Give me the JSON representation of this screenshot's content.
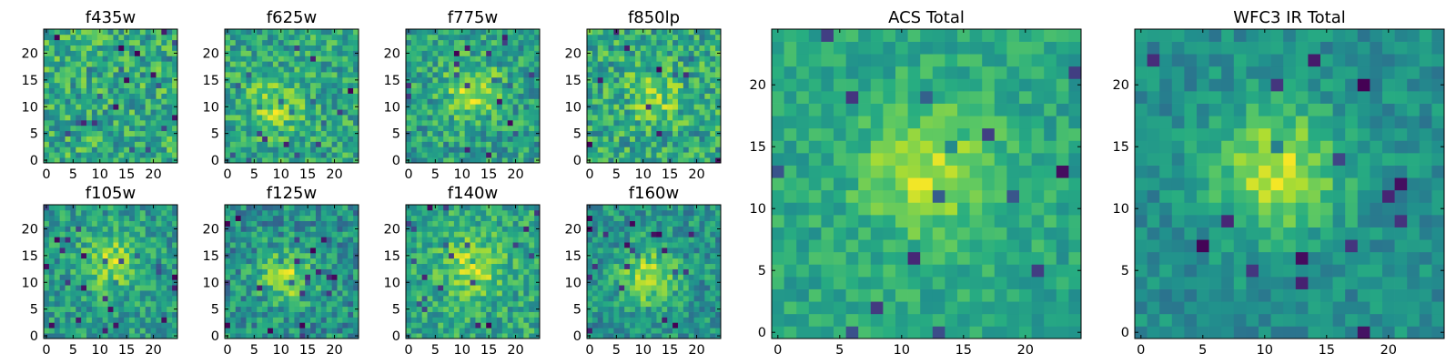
{
  "chart_data": [
    {
      "type": "heatmap",
      "title": "f435w",
      "grid_size": 25,
      "xticks": [
        0,
        5,
        10,
        15,
        20
      ],
      "yticks": [
        0,
        5,
        10,
        15,
        20
      ],
      "xlim": [
        0,
        24
      ],
      "ylim": [
        0,
        24
      ],
      "colormap": "viridis",
      "center": [
        11,
        12
      ],
      "blob_strength": 0.0,
      "noise_level": 0.22,
      "base_level": 0.62,
      "seed": 11
    },
    {
      "type": "heatmap",
      "title": "f625w",
      "grid_size": 25,
      "xticks": [
        0,
        5,
        10,
        15,
        20
      ],
      "yticks": [
        0,
        5,
        10,
        15,
        20
      ],
      "xlim": [
        0,
        24
      ],
      "ylim": [
        0,
        24
      ],
      "colormap": "viridis",
      "center": [
        9,
        10
      ],
      "blob_strength": 0.22,
      "noise_level": 0.2,
      "base_level": 0.6,
      "seed": 23
    },
    {
      "type": "heatmap",
      "title": "f775w",
      "grid_size": 25,
      "xticks": [
        0,
        5,
        10,
        15,
        20
      ],
      "yticks": [
        0,
        5,
        10,
        15,
        20
      ],
      "xlim": [
        0,
        24
      ],
      "ylim": [
        0,
        24
      ],
      "colormap": "viridis",
      "center": [
        12,
        13
      ],
      "blob_strength": 0.3,
      "noise_level": 0.2,
      "base_level": 0.57,
      "seed": 37
    },
    {
      "type": "heatmap",
      "title": "f850lp",
      "grid_size": 25,
      "xticks": [
        0,
        5,
        10,
        15,
        20
      ],
      "yticks": [
        0,
        5,
        10,
        15,
        20
      ],
      "xlim": [
        0,
        24
      ],
      "ylim": [
        0,
        24
      ],
      "colormap": "viridis",
      "center": [
        12,
        12
      ],
      "blob_strength": 0.2,
      "noise_level": 0.22,
      "base_level": 0.6,
      "seed": 41
    },
    {
      "type": "heatmap",
      "title": "f105w",
      "grid_size": 25,
      "xticks": [
        0,
        5,
        10,
        15,
        20
      ],
      "yticks": [
        0,
        5,
        10,
        15,
        20
      ],
      "xlim": [
        0,
        24
      ],
      "ylim": [
        0,
        24
      ],
      "colormap": "viridis",
      "center": [
        12,
        14
      ],
      "blob_strength": 0.32,
      "noise_level": 0.18,
      "base_level": 0.55,
      "seed": 53
    },
    {
      "type": "heatmap",
      "title": "f125w",
      "grid_size": 25,
      "xticks": [
        0,
        5,
        10,
        15,
        20
      ],
      "yticks": [
        0,
        5,
        10,
        15,
        20
      ],
      "xlim": [
        0,
        24
      ],
      "ylim": [
        0,
        24
      ],
      "colormap": "viridis",
      "center": [
        11,
        11
      ],
      "blob_strength": 0.34,
      "noise_level": 0.2,
      "base_level": 0.5,
      "seed": 67
    },
    {
      "type": "heatmap",
      "title": "f140w",
      "grid_size": 25,
      "xticks": [
        0,
        5,
        10,
        15,
        20
      ],
      "yticks": [
        0,
        5,
        10,
        15,
        20
      ],
      "xlim": [
        0,
        24
      ],
      "ylim": [
        0,
        24
      ],
      "colormap": "viridis",
      "center": [
        12,
        13
      ],
      "blob_strength": 0.3,
      "noise_level": 0.18,
      "base_level": 0.6,
      "seed": 79
    },
    {
      "type": "heatmap",
      "title": "f160w",
      "grid_size": 25,
      "xticks": [
        0,
        5,
        10,
        15,
        20
      ],
      "yticks": [
        0,
        5,
        10,
        15,
        20
      ],
      "xlim": [
        0,
        24
      ],
      "ylim": [
        0,
        24
      ],
      "colormap": "viridis",
      "center": [
        11,
        11
      ],
      "blob_strength": 0.36,
      "noise_level": 0.18,
      "base_level": 0.52,
      "seed": 83
    },
    {
      "type": "heatmap",
      "title": "ACS Total",
      "grid_size": 25,
      "xticks": [
        0,
        5,
        10,
        15,
        20
      ],
      "yticks": [
        0,
        5,
        10,
        15,
        20
      ],
      "xlim": [
        0,
        24
      ],
      "ylim": [
        0,
        24
      ],
      "colormap": "viridis",
      "center": [
        12,
        13
      ],
      "blob_strength": 0.3,
      "noise_level": 0.12,
      "base_level": 0.6,
      "seed": 97
    },
    {
      "type": "heatmap",
      "title": "WFC3 IR Total",
      "grid_size": 25,
      "xticks": [
        0,
        5,
        10,
        15,
        20
      ],
      "yticks": [
        0,
        5,
        10,
        15,
        20
      ],
      "xlim": [
        0,
        24
      ],
      "ylim": [
        0,
        24
      ],
      "colormap": "viridis",
      "center": [
        11,
        13
      ],
      "blob_strength": 0.4,
      "noise_level": 0.12,
      "base_level": 0.5,
      "seed": 101
    }
  ]
}
